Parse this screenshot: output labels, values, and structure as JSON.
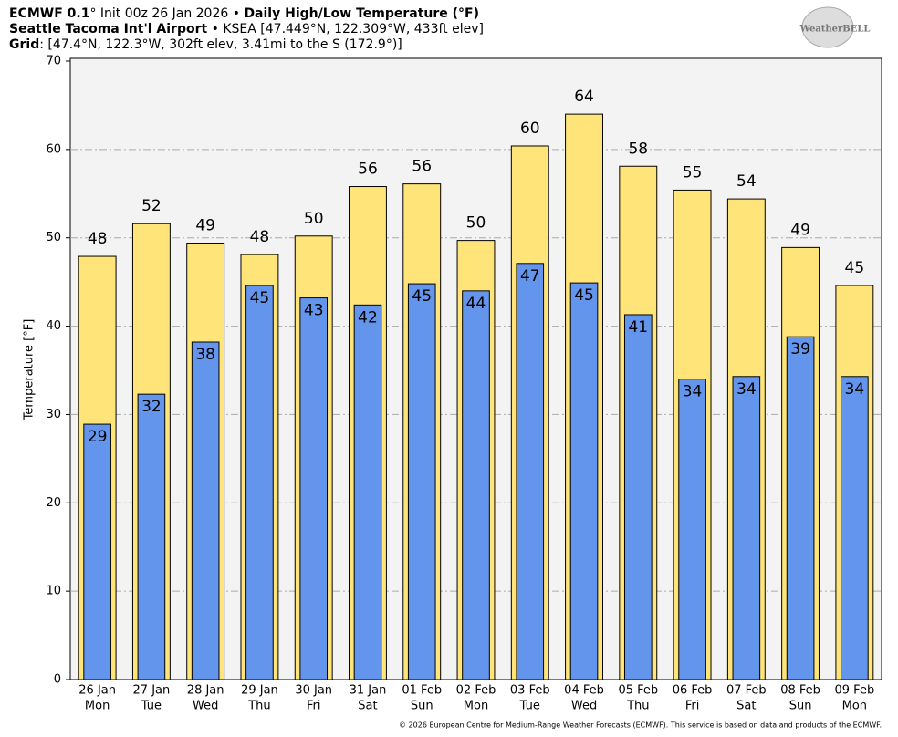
{
  "chart_data": {
    "type": "bar",
    "title": [
      "ECMWF 0.1",
      "° Init 00z 26 Jan 2026 • ",
      "Daily High/Low Temperature (°F)"
    ],
    "subtitle": [
      "Seattle Tacoma Int'l Airport",
      " • KSEA [47.449°N, 122.309°W, 433ft elev]"
    ],
    "grid_info": [
      "Grid",
      ": [47.4°N, 122.3°W, 302ft elev, 3.41mi to the S (172.9°)]"
    ],
    "logo": "WeatherBELL",
    "footer": "© 2026 European Centre for Medium-Range Weather Forecasts (ECMWF). This service is based on data and products of the ECMWF.",
    "y_label": "Temperature [°F]",
    "categories": [
      "26 Jan",
      "27 Jan",
      "28 Jan",
      "29 Jan",
      "30 Jan",
      "31 Jan",
      "01 Feb",
      "02 Feb",
      "03 Feb",
      "04 Feb",
      "05 Feb",
      "06 Feb",
      "07 Feb",
      "08 Feb",
      "09 Feb"
    ],
    "weekdays": [
      "Mon",
      "Tue",
      "Wed",
      "Thu",
      "Fri",
      "Sat",
      "Sun",
      "Mon",
      "Tue",
      "Wed",
      "Thu",
      "Fri",
      "Sat",
      "Sun",
      "Mon"
    ],
    "series": [
      {
        "color": "#ffe47a",
        "values": [
          47.9,
          51.6,
          49.4,
          48.1,
          50.2,
          55.8,
          56.1,
          49.7,
          60.4,
          64.0,
          58.1,
          55.4,
          54.4,
          48.9,
          44.6
        ],
        "value_labels": [
          "48",
          "52",
          "49",
          "48",
          "50",
          "56",
          "56",
          "50",
          "60",
          "64",
          "58",
          "55",
          "54",
          "49",
          "45"
        ]
      },
      {
        "color": "#6495ed",
        "values": [
          28.9,
          32.3,
          38.2,
          44.6,
          43.2,
          42.4,
          44.8,
          44.0,
          47.1,
          44.9,
          41.3,
          34.0,
          34.3,
          38.8,
          34.3
        ],
        "value_labels": [
          "29",
          "32",
          "38",
          "45",
          "43",
          "42",
          "45",
          "44",
          "47",
          "45",
          "41",
          "34",
          "34",
          "39",
          "34"
        ]
      }
    ],
    "ylim": [
      0,
      70
    ],
    "yticks": [
      0,
      10,
      20,
      30,
      40,
      50,
      60,
      70
    ],
    "grid": true
  }
}
